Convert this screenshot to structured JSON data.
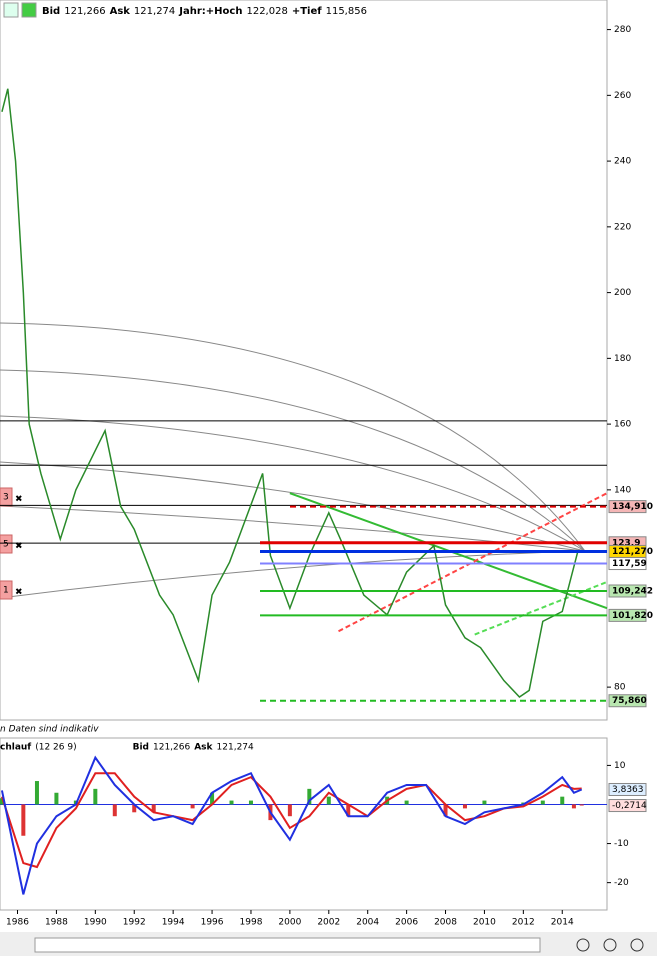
{
  "ui": {
    "header": [
      "Bid",
      "121,266",
      "Ask",
      "121,274",
      "Jahr:+Hoch",
      "122,028",
      "+Tief",
      "115,856"
    ],
    "note": "n Daten sind indikativ",
    "sub_header": [
      "chlauf",
      "(12 26 9)",
      "Bid",
      "121,266",
      "Ask",
      "121,274"
    ],
    "markers": [
      "3",
      "5",
      "1"
    ]
  },
  "chart_data": [
    {
      "type": "line",
      "xlim": [
        1985.1,
        2016.3
      ],
      "ylim": [
        70,
        289
      ],
      "yticks": [
        80,
        140,
        160,
        180,
        200,
        220,
        240,
        260,
        280
      ],
      "series": [
        {
          "name": "price",
          "color": "#2a8a2a",
          "x": [
            1985.2,
            1985.5,
            1985.9,
            1986.3,
            1986.6,
            1987.2,
            1988.2,
            1989,
            1990,
            1990.5,
            1991.3,
            1992,
            1993.3,
            1994,
            1995.3,
            1996,
            1996.9,
            1998.6,
            1999,
            2000,
            2001,
            2002,
            2002.6,
            2003.8,
            2005,
            2006,
            2007.4,
            2008,
            2009,
            2009.8,
            2011,
            2011.8,
            2012.3,
            2013,
            2014,
            2014.8
          ],
          "values": [
            255,
            262,
            240,
            200,
            160,
            145,
            125,
            140,
            152,
            158,
            135,
            128,
            108,
            102,
            82,
            108,
            118,
            145,
            120,
            104,
            120,
            133,
            125,
            108,
            102,
            115,
            123,
            105,
            95,
            92,
            82,
            77,
            79,
            100,
            103,
            121.27
          ]
        }
      ],
      "hlines": {
        "values": [
          161,
          147.5,
          135.3,
          123.8
        ],
        "color": "#000000"
      },
      "levels": {
        "values": [
          134.91,
          123.9,
          121.27,
          117.59,
          109.242,
          101.82,
          75.86
        ],
        "value_labels": [
          "134,910",
          "123,9",
          "121,270",
          "117,59",
          "109,242",
          "101,820",
          "75,860"
        ],
        "colors": [
          "#f4b6b6",
          "#f4b6b6",
          "#ffd700",
          "#ffffff",
          "#b9e7b0",
          "#b9e7b0",
          "#b9e7b0"
        ],
        "line_colors": [
          "#e00000",
          "#e00000",
          "#0030e0",
          "#8080ff",
          "#22bb22",
          "#22bb22",
          "#22bb22"
        ]
      },
      "trendlines": [
        {
          "x": [
            2000,
            2016.3
          ],
          "values": [
            139,
            104
          ],
          "color": "#33bb33"
        },
        {
          "x": [
            2002.5,
            2016.3
          ],
          "values": [
            97,
            139
          ],
          "color": "#ff4444"
        },
        {
          "x": [
            2009.5,
            2016.3
          ],
          "values": [
            96,
            112
          ],
          "color": "#55dd55"
        }
      ]
    },
    {
      "type": "macd",
      "xlim": [
        1985.1,
        2016.3
      ],
      "ylim": [
        -27,
        16.5
      ],
      "yticks": [
        10,
        -10,
        -20
      ],
      "xticks": [
        1986,
        1988,
        1990,
        1992,
        1994,
        1996,
        1998,
        2000,
        2002,
        2004,
        2006,
        2008,
        2010,
        2012,
        2014
      ],
      "x": [
        1985.2,
        1986.3,
        1987,
        1988,
        1989,
        1990,
        1991,
        1992,
        1993,
        1994,
        1995,
        1996,
        1997,
        1998,
        1999,
        2000,
        2001,
        2002,
        2003,
        2004,
        2005,
        2006,
        2007,
        2008,
        2009,
        2010,
        2011,
        2012,
        2013,
        2014,
        2014.6,
        2015
      ],
      "series": [
        {
          "name": "MACD",
          "color": "#2030e0",
          "values": [
            3.6,
            -23,
            -10,
            -3,
            0,
            12,
            5,
            0,
            -4,
            -3,
            -5,
            3,
            6,
            8,
            -2,
            -9,
            1,
            5,
            -3,
            -3,
            3,
            5,
            5,
            -3,
            -5,
            -2,
            -1,
            0,
            3,
            7,
            3,
            3.8363
          ],
          "value_labels": [
            null,
            null,
            null,
            null,
            null,
            null,
            null,
            null,
            null,
            null,
            null,
            null,
            null,
            null,
            null,
            null,
            null,
            null,
            null,
            null,
            null,
            null,
            null,
            null,
            null,
            null,
            null,
            null,
            null,
            null,
            null,
            "3,8363"
          ]
        },
        {
          "name": "Signal",
          "color": "#e02020",
          "values": [
            2,
            -15,
            -16,
            -6,
            -1,
            8,
            8,
            2,
            -2,
            -3,
            -4,
            0,
            5,
            7,
            2,
            -6,
            -3,
            3,
            0,
            -3,
            1,
            4,
            5,
            0,
            -4,
            -3,
            -1,
            -0.5,
            2,
            5,
            4,
            4.1
          ]
        },
        {
          "name": "Histogram",
          "colors": [
            "#33aa33",
            "#dd3333"
          ],
          "values": [
            1.6,
            -8,
            6,
            3,
            1,
            4,
            -3,
            -2,
            -2,
            0,
            -1,
            3,
            1,
            1,
            -4,
            -3,
            4,
            2,
            -3,
            0,
            2,
            1,
            0,
            -3,
            -1,
            1,
            0,
            0.5,
            1,
            2,
            -1,
            -0.2714
          ],
          "value_labels": [
            null,
            null,
            null,
            null,
            null,
            null,
            null,
            null,
            null,
            null,
            null,
            null,
            null,
            null,
            null,
            null,
            null,
            null,
            null,
            null,
            null,
            null,
            null,
            null,
            null,
            null,
            null,
            null,
            null,
            null,
            null,
            "-0,2714"
          ]
        }
      ]
    }
  ]
}
